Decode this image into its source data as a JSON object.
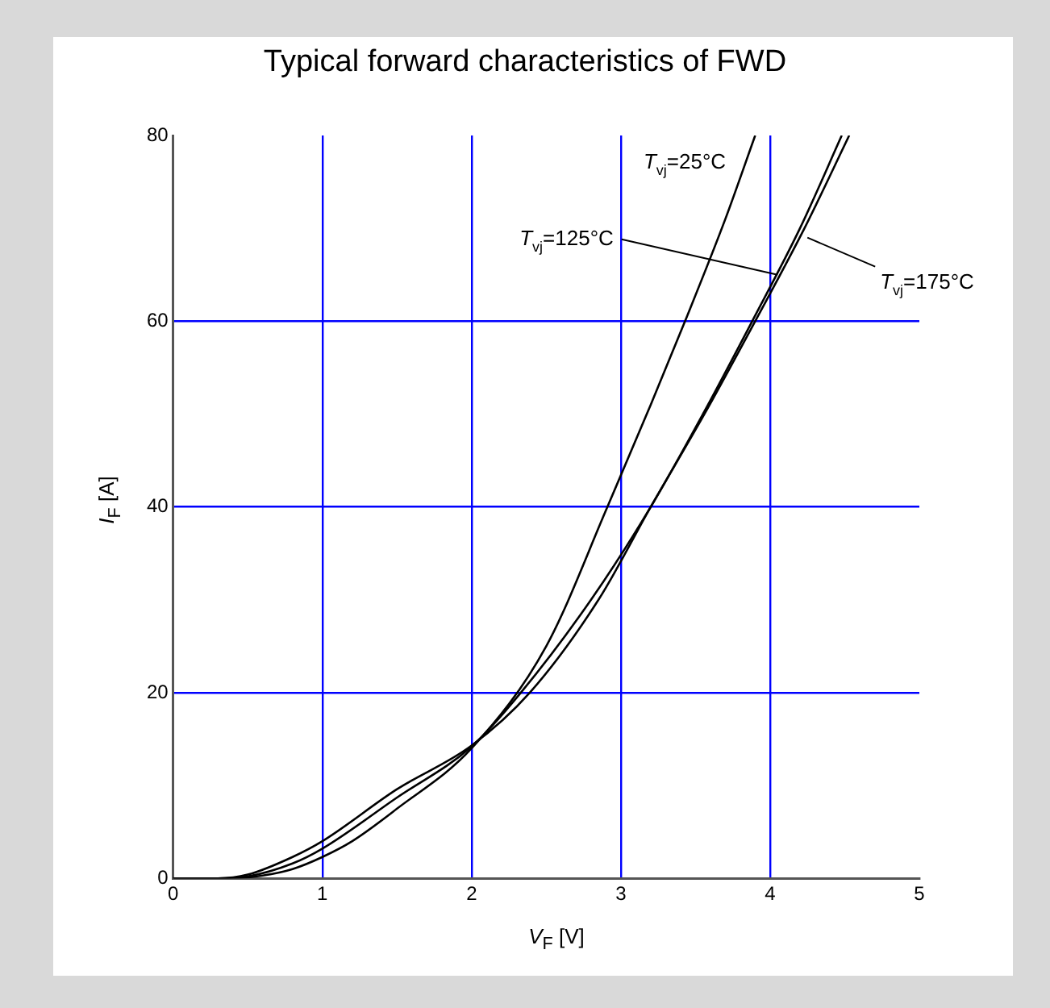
{
  "chart_data": {
    "type": "line",
    "title": "Typical forward characteristics of FWD",
    "xlabel": "V$_{F}$ [V]",
    "ylabel": "I$_{F}$ [A]",
    "xlim": [
      0,
      5
    ],
    "xticks": [
      0,
      1,
      2,
      3,
      4,
      5
    ],
    "ylim": [
      0,
      80
    ],
    "yticks": [
      0,
      20,
      40,
      60,
      80
    ],
    "grid": true,
    "marker": "none",
    "line_style": "solid",
    "series": [
      {
        "color": "#000000",
        "x": [
          0,
          0.4,
          0.6,
          0.8,
          1,
          1.2,
          1.5,
          2,
          2.5,
          2.91,
          3.2,
          3.43,
          3.7,
          3.9
        ],
        "values": [
          0,
          0,
          0.3,
          1,
          2.3,
          4,
          7.5,
          14,
          25,
          40,
          51,
          60,
          71,
          80
        ]
      },
      {
        "color": "#000000",
        "x": [
          0,
          0.3,
          0.5,
          0.8,
          1,
          1.5,
          2,
          2.33,
          2.8,
          3.2,
          3.55,
          3.88,
          4.2,
          4.48
        ],
        "values": [
          0,
          0,
          0.2,
          1.6,
          3.2,
          8.7,
          14.2,
          20,
          30,
          40,
          50,
          60,
          70,
          80
        ]
      },
      {
        "color": "#000000",
        "x": [
          0,
          0.3,
          0.5,
          0.8,
          1,
          1.5,
          2,
          2.39,
          2.85,
          3.2,
          3.56,
          3.9,
          4.23,
          4.53
        ],
        "values": [
          0,
          0,
          0.4,
          2.3,
          4,
          9.6,
          14.3,
          20,
          30,
          40,
          50,
          60,
          70,
          80
        ]
      }
    ],
    "annotations": [
      {
        "text": "T$_{vj}$=25°C",
        "x": 3.8,
        "y": 75
      },
      {
        "text": "T$_{vj}$=125°C",
        "x": 4.05,
        "y": 65
      },
      {
        "text": "T$_{vj}$=175°C",
        "x": 4.25,
        "y": 69
      }
    ]
  }
}
